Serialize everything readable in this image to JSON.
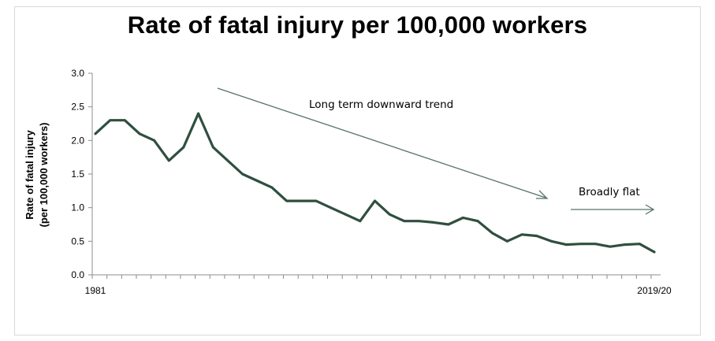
{
  "chart_data": {
    "type": "line",
    "title": "Rate of fatal injury per 100,000 workers",
    "ylabel_line1": "Rate of fatal injury",
    "ylabel_line2": "(per 100,000 workers)",
    "ylim": [
      0,
      3.0
    ],
    "yticks": [
      "0.0",
      "0.5",
      "1.0",
      "1.5",
      "2.0",
      "2.5",
      "3.0"
    ],
    "x_first_label": "1981",
    "x_last_label": "2019/20",
    "grid": false,
    "series": [
      {
        "color": "#2f4f3f",
        "values": [
          2.1,
          2.3,
          2.3,
          2.1,
          2.0,
          1.7,
          1.9,
          2.4,
          1.9,
          1.7,
          1.5,
          1.4,
          1.3,
          1.1,
          1.1,
          1.1,
          1.0,
          0.9,
          0.8,
          1.1,
          0.9,
          0.8,
          0.8,
          0.78,
          0.75,
          0.85,
          0.8,
          0.62,
          0.5,
          0.6,
          0.58,
          0.5,
          0.45,
          0.46,
          0.46,
          0.42,
          0.45,
          0.46,
          0.34
        ]
      }
    ],
    "annotations": [
      {
        "text": "Long term downward trend"
      },
      {
        "text": "Broadly flat"
      }
    ]
  }
}
